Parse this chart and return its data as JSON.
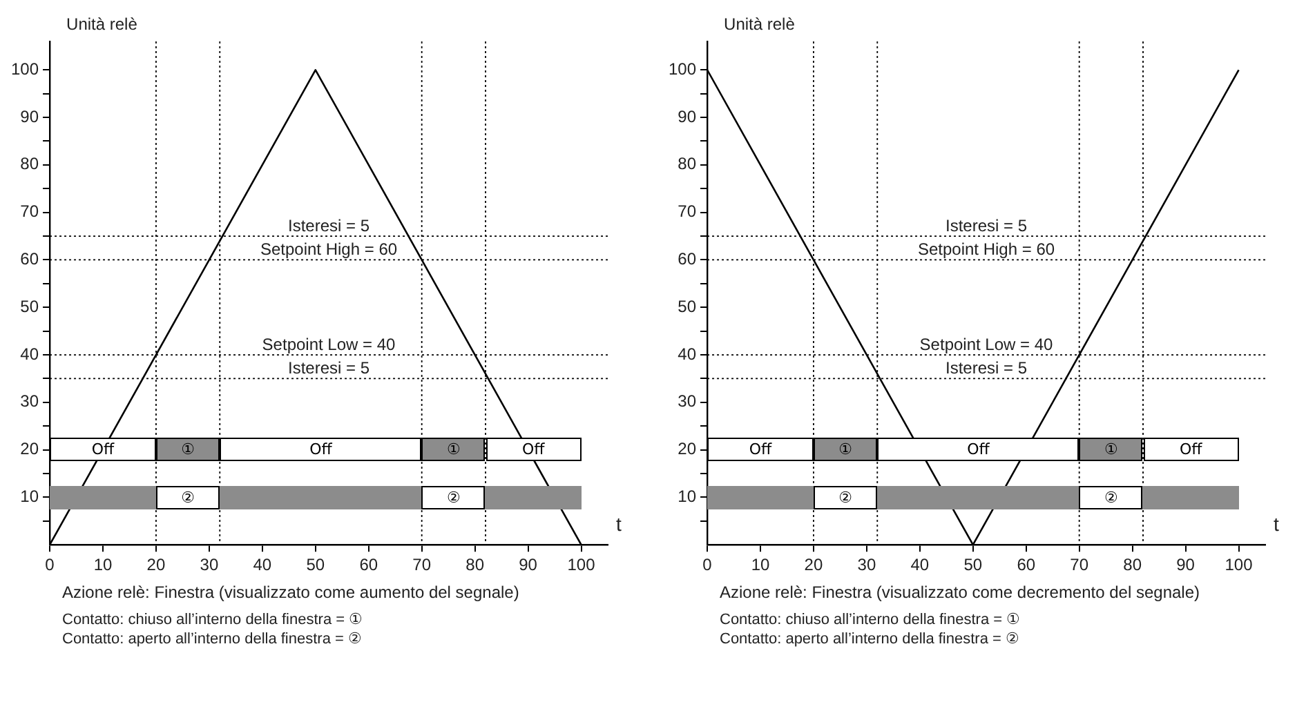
{
  "chart_data": [
    {
      "type": "line",
      "ylabel": "Unità relè",
      "xlabel": "t",
      "xlim": [
        0,
        105
      ],
      "ylim": [
        0,
        106
      ],
      "xticks": [
        0,
        10,
        20,
        30,
        40,
        50,
        60,
        70,
        80,
        90,
        100
      ],
      "yticks": [
        {
          "value": 5,
          "label": null
        },
        10,
        {
          "value": 15,
          "label": null
        },
        20,
        {
          "value": 25,
          "label": null
        },
        30,
        {
          "value": 35,
          "label": null
        },
        40,
        {
          "value": 45,
          "label": null
        },
        50,
        {
          "value": 55,
          "label": null
        },
        60,
        {
          "value": 65,
          "label": null
        },
        70,
        {
          "value": 75,
          "label": null
        },
        80,
        {
          "value": 85,
          "label": null
        },
        90,
        {
          "value": 95,
          "label": null
        },
        100
      ],
      "x": [
        0,
        50,
        100
      ],
      "series": [
        {
          "color": "#000000",
          "values": [
            0,
            100,
            0
          ]
        }
      ],
      "grid": false,
      "legend": false,
      "marker": "none",
      "line_style": "solid",
      "ref_lines": [
        {
          "axis": "y",
          "value": 65,
          "line_style": "dotted"
        },
        {
          "axis": "y",
          "value": 60,
          "label": "Setpoint High = 60",
          "line_style": "dotted"
        },
        {
          "axis": "y",
          "value": 40,
          "label": "Setpoint Low = 40",
          "line_style": "dotted"
        },
        {
          "axis": "y",
          "value": 35,
          "line_style": "dotted"
        },
        {
          "axis": "x",
          "value": 20,
          "line_style": "dotted"
        },
        {
          "axis": "x",
          "value": 32,
          "line_style": "dotted"
        },
        {
          "axis": "x",
          "value": 70,
          "line_style": "dotted"
        },
        {
          "axis": "x",
          "value": 82,
          "line_style": "dotted"
        }
      ],
      "annotations": [
        {
          "text": "Isteresi = 5",
          "y": 65
        },
        {
          "text": "Isteresi = 5",
          "y": 35
        },
        "Off",
        "①",
        "Off",
        "①",
        "Off",
        "②",
        "②",
        "Azione relè: Finestra (visualizzato come aumento del segnale)",
        "Contatto: chiuso all’interno della finestra = ①",
        "Contatto: aperto all’interno della finestra = ②"
      ]
    },
    {
      "type": "line",
      "ylabel": "Unità relè",
      "xlabel": "t",
      "xlim": [
        0,
        105
      ],
      "ylim": [
        0,
        106
      ],
      "xticks": [
        0,
        10,
        20,
        30,
        40,
        50,
        60,
        70,
        80,
        90,
        100
      ],
      "yticks": [
        {
          "value": 5,
          "label": null
        },
        10,
        {
          "value": 15,
          "label": null
        },
        20,
        {
          "value": 25,
          "label": null
        },
        30,
        {
          "value": 35,
          "label": null
        },
        40,
        {
          "value": 45,
          "label": null
        },
        50,
        {
          "value": 55,
          "label": null
        },
        60,
        {
          "value": 65,
          "label": null
        },
        70,
        {
          "value": 75,
          "label": null
        },
        80,
        {
          "value": 85,
          "label": null
        },
        90,
        {
          "value": 95,
          "label": null
        },
        100
      ],
      "x": [
        0,
        50,
        100
      ],
      "series": [
        {
          "color": "#000000",
          "values": [
            100,
            0,
            100
          ]
        }
      ],
      "grid": false,
      "legend": false,
      "marker": "none",
      "line_style": "solid",
      "ref_lines": [
        {
          "axis": "y",
          "value": 65,
          "line_style": "dotted"
        },
        {
          "axis": "y",
          "value": 60,
          "label": "Setpoint High = 60",
          "line_style": "dotted"
        },
        {
          "axis": "y",
          "value": 40,
          "label": "Setpoint Low = 40",
          "line_style": "dotted"
        },
        {
          "axis": "y",
          "value": 35,
          "line_style": "dotted"
        },
        {
          "axis": "x",
          "value": 20,
          "line_style": "dotted"
        },
        {
          "axis": "x",
          "value": 32,
          "line_style": "dotted"
        },
        {
          "axis": "x",
          "value": 70,
          "line_style": "dotted"
        },
        {
          "axis": "x",
          "value": 82,
          "line_style": "dotted"
        }
      ],
      "annotations": [
        {
          "text": "Isteresi = 5",
          "y": 65
        },
        {
          "text": "Isteresi = 5",
          "y": 35
        },
        "Off",
        "①",
        "Off",
        "①",
        "Off",
        "②",
        "②",
        "Azione relè: Finestra (visualizzato come decremento del segnale)",
        "Contatto: chiuso all’interno della finestra = ①",
        "Contatto: aperto all’interno della finestra = ②"
      ]
    }
  ]
}
